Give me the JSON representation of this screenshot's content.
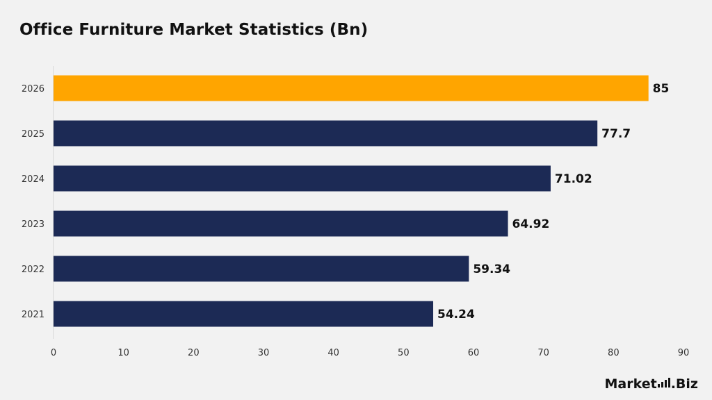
{
  "chart_data": {
    "type": "bar",
    "orientation": "horizontal",
    "title": "Office Furniture Market Statistics (Bn)",
    "categories": [
      "2026",
      "2025",
      "2024",
      "2023",
      "2022",
      "2021"
    ],
    "values": [
      85,
      77.7,
      71.02,
      64.92,
      59.34,
      54.24
    ],
    "value_labels": [
      "85",
      "77.7",
      "71.02",
      "64.92",
      "59.34",
      "54.24"
    ],
    "highlight_index": 0,
    "xlim": [
      0,
      90
    ],
    "xticks": [
      0,
      10,
      20,
      30,
      40,
      50,
      60,
      70,
      80,
      90
    ],
    "grid": false,
    "colors": {
      "bar": "#1c2a55",
      "highlight": "#ffa500",
      "background": "#f2f2f2"
    }
  },
  "brand": {
    "prefix": "Market",
    "suffix": ".Biz",
    "icon": "bar-chart-icon"
  }
}
